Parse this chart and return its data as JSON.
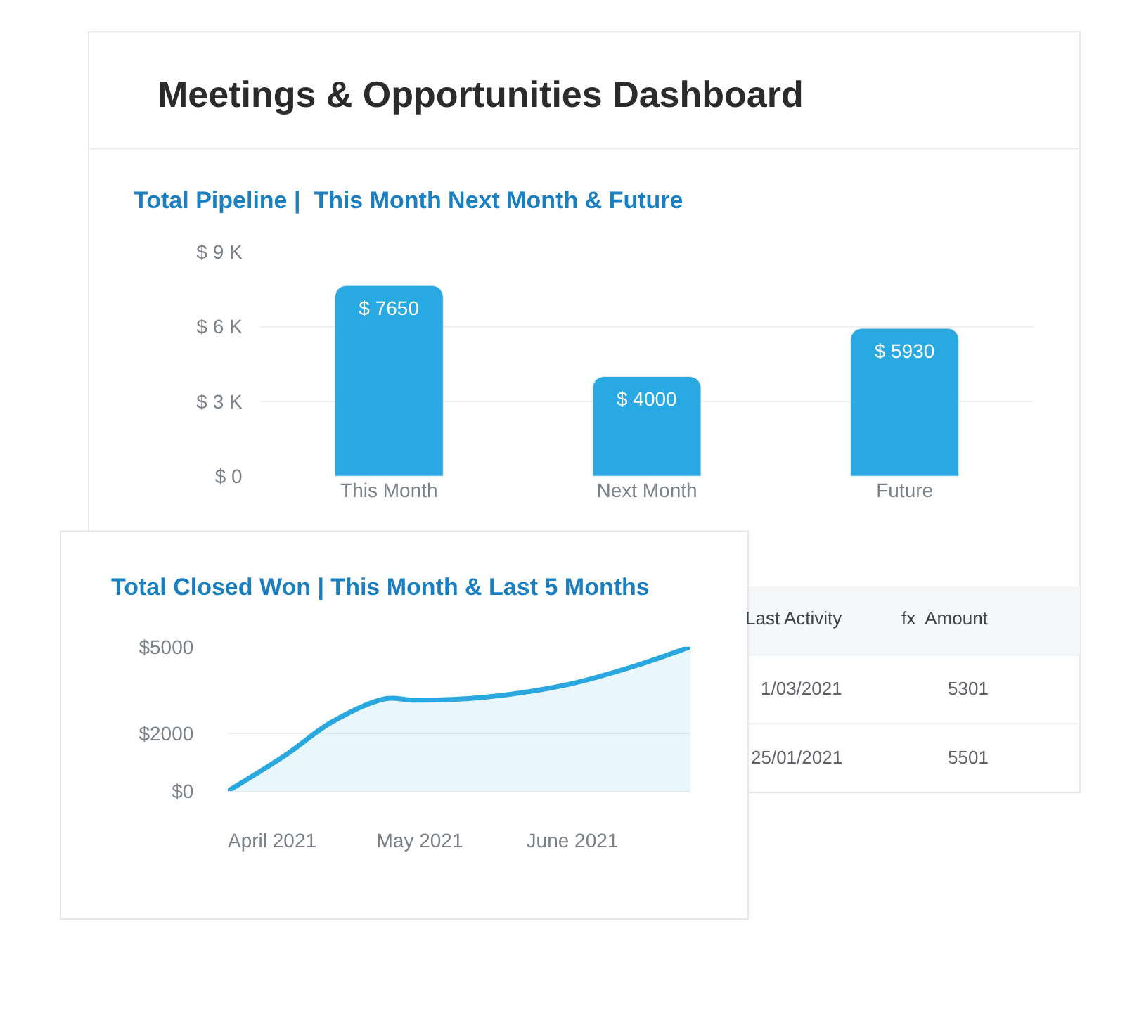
{
  "chart_data": [
    {
      "type": "bar",
      "title": "Meetings & Opportunities Dashboard",
      "subtitle": "Total Pipeline |  This Month Next Month & Future",
      "categories": [
        "This Month",
        "Next Month",
        "Future"
      ],
      "series": [
        {
          "color": "#29a9e1",
          "values": [
            7650,
            4000,
            5930
          ],
          "value_labels": [
            "$ 7650",
            "$ 4000",
            "$ 5930"
          ]
        }
      ],
      "ylim": [
        0,
        9000
      ],
      "yticks": [
        {
          "value": 0,
          "label": "$ 0"
        },
        {
          "value": 3000,
          "label": "$ 3 K"
        },
        {
          "value": 6000,
          "label": "$ 6 K"
        },
        {
          "value": 9000,
          "label": "$ 9 K"
        }
      ],
      "grid": "y",
      "legend": false
    },
    {
      "type": "area",
      "title": "Total Closed Won | This Month & Last 5 Months",
      "x": [
        "2021-03-23",
        "2021-04-04",
        "2021-04-13",
        "2021-04-24",
        "2021-04-30",
        "2021-05-14",
        "2021-05-31",
        "2021-06-14",
        "2021-06-25"
      ],
      "series": [
        {
          "color": "#29a8e0",
          "values": [
            0,
            1280,
            2380,
            3200,
            3150,
            3250,
            3690,
            4350,
            5000
          ]
        }
      ],
      "xlim": [
        "2021-03-23",
        "2021-06-25"
      ],
      "xticks": [
        {
          "value": "2021-04-01",
          "label": "April 2021"
        },
        {
          "value": "2021-05-01",
          "label": "May 2021"
        },
        {
          "value": "2021-06-01",
          "label": "June 2021"
        }
      ],
      "ylim": [
        0,
        5000
      ],
      "yticks": [
        {
          "value": 0,
          "label": "$0"
        },
        {
          "value": 2000,
          "label": "$2000"
        },
        {
          "value": 5000,
          "label": "$5000"
        }
      ],
      "grid": "y",
      "legend": false
    },
    {
      "type": "other",
      "annotations": [
        "Last Activity",
        "fx  Amount",
        "1/03/2021",
        "5301",
        "25/01/2021",
        "5501"
      ]
    }
  ]
}
